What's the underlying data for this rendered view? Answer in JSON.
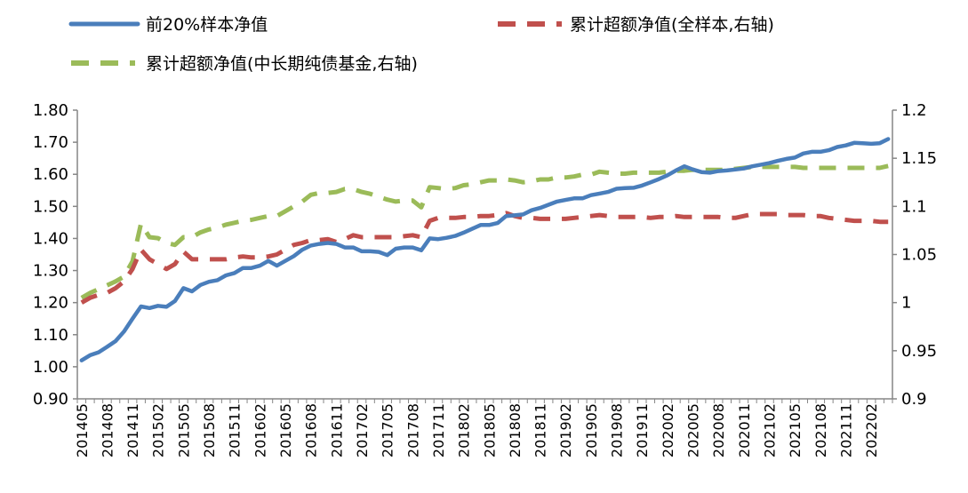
{
  "chart_data": {
    "type": "line",
    "grid": false,
    "legend_position": "top",
    "x_tick_labels": [
      "201405",
      "201408",
      "201411",
      "201502",
      "201505",
      "201508",
      "201511",
      "201602",
      "201605",
      "201608",
      "201611",
      "201702",
      "201705",
      "201708",
      "201711",
      "201802",
      "201805",
      "201808",
      "201811",
      "201902",
      "201905",
      "201908",
      "201911",
      "202002",
      "202005",
      "202008",
      "202011",
      "202102",
      "202105",
      "202108",
      "202111",
      "202202"
    ],
    "x": [
      "201405",
      "201406",
      "201407",
      "201408",
      "201409",
      "201410",
      "201411",
      "201412",
      "201501",
      "201502",
      "201503",
      "201504",
      "201505",
      "201506",
      "201507",
      "201508",
      "201509",
      "201510",
      "201511",
      "201512",
      "201601",
      "201602",
      "201603",
      "201604",
      "201605",
      "201606",
      "201607",
      "201608",
      "201609",
      "201610",
      "201611",
      "201612",
      "201701",
      "201702",
      "201703",
      "201704",
      "201705",
      "201706",
      "201707",
      "201708",
      "201709",
      "201710",
      "201711",
      "201712",
      "201801",
      "201802",
      "201803",
      "201804",
      "201805",
      "201806",
      "201807",
      "201808",
      "201809",
      "201810",
      "201811",
      "201812",
      "201901",
      "201902",
      "201903",
      "201904",
      "201905",
      "201906",
      "201907",
      "201908",
      "201909",
      "201910",
      "201911",
      "201912",
      "202001",
      "202002",
      "202003",
      "202004",
      "202005",
      "202006",
      "202007",
      "202008",
      "202009",
      "202010",
      "202011",
      "202012",
      "202101",
      "202102",
      "202103",
      "202104",
      "202105",
      "202106",
      "202107",
      "202108",
      "202109",
      "202110",
      "202111",
      "202112",
      "202201",
      "202202",
      "202203",
      "202204"
    ],
    "y_left": {
      "ylim": [
        0.9,
        1.8
      ],
      "ticks": [
        "0.90",
        "1.00",
        "1.10",
        "1.20",
        "1.30",
        "1.40",
        "1.50",
        "1.60",
        "1.70",
        "1.80"
      ]
    },
    "y_right": {
      "ylim": [
        0.9,
        1.2
      ],
      "ticks": [
        "0.9",
        "0.95",
        "1",
        "1.05",
        "1.1",
        "1.15",
        "1.2"
      ]
    },
    "series": [
      {
        "name": "前20%样本净值",
        "axis": "left",
        "color": "#4a7ebb",
        "style": "solid",
        "values": [
          1.02,
          1.036,
          1.045,
          1.062,
          1.08,
          1.11,
          1.15,
          1.188,
          1.183,
          1.19,
          1.187,
          1.205,
          1.245,
          1.235,
          1.255,
          1.265,
          1.27,
          1.285,
          1.292,
          1.308,
          1.308,
          1.315,
          1.33,
          1.315,
          1.33,
          1.345,
          1.365,
          1.378,
          1.383,
          1.386,
          1.383,
          1.372,
          1.372,
          1.36,
          1.36,
          1.358,
          1.348,
          1.368,
          1.372,
          1.372,
          1.363,
          1.4,
          1.398,
          1.402,
          1.408,
          1.418,
          1.43,
          1.442,
          1.442,
          1.448,
          1.47,
          1.472,
          1.475,
          1.488,
          1.495,
          1.505,
          1.515,
          1.52,
          1.525,
          1.525,
          1.535,
          1.54,
          1.545,
          1.555,
          1.557,
          1.558,
          1.565,
          1.575,
          1.585,
          1.597,
          1.612,
          1.625,
          1.615,
          1.607,
          1.605,
          1.61,
          1.612,
          1.615,
          1.618,
          1.625,
          1.63,
          1.635,
          1.642,
          1.648,
          1.652,
          1.665,
          1.67,
          1.67,
          1.675,
          1.685,
          1.69,
          1.698,
          1.697,
          1.695,
          1.697,
          1.71
        ]
      },
      {
        "name": "累计超额净值(全样本,右轴)",
        "axis": "right",
        "color": "#c0504d",
        "style": "dashed",
        "values": [
          1.0,
          1.005,
          1.008,
          1.01,
          1.015,
          1.022,
          1.035,
          1.055,
          1.045,
          1.04,
          1.035,
          1.04,
          1.053,
          1.045,
          1.045,
          1.045,
          1.045,
          1.045,
          1.047,
          1.048,
          1.047,
          1.047,
          1.048,
          1.05,
          1.055,
          1.06,
          1.062,
          1.065,
          1.065,
          1.066,
          1.063,
          1.066,
          1.07,
          1.068,
          1.068,
          1.068,
          1.068,
          1.068,
          1.069,
          1.07,
          1.068,
          1.085,
          1.088,
          1.088,
          1.088,
          1.089,
          1.089,
          1.09,
          1.09,
          1.091,
          1.093,
          1.09,
          1.088,
          1.088,
          1.087,
          1.087,
          1.087,
          1.087,
          1.088,
          1.089,
          1.09,
          1.091,
          1.09,
          1.089,
          1.089,
          1.089,
          1.089,
          1.088,
          1.089,
          1.089,
          1.09,
          1.089,
          1.089,
          1.089,
          1.089,
          1.089,
          1.088,
          1.088,
          1.09,
          1.092,
          1.092,
          1.092,
          1.092,
          1.091,
          1.091,
          1.091,
          1.09,
          1.09,
          1.088,
          1.087,
          1.086,
          1.085,
          1.085,
          1.085,
          1.084,
          1.084
        ]
      },
      {
        "name": "累计超额净值(中长期纯债基金,右轴)",
        "axis": "right",
        "color": "#9bbb59",
        "style": "dashed",
        "values": [
          1.005,
          1.01,
          1.014,
          1.018,
          1.022,
          1.027,
          1.043,
          1.082,
          1.068,
          1.067,
          1.062,
          1.06,
          1.068,
          1.068,
          1.073,
          1.076,
          1.078,
          1.081,
          1.083,
          1.085,
          1.086,
          1.088,
          1.09,
          1.09,
          1.095,
          1.1,
          1.105,
          1.112,
          1.114,
          1.114,
          1.115,
          1.118,
          1.118,
          1.115,
          1.113,
          1.11,
          1.107,
          1.105,
          1.106,
          1.106,
          1.099,
          1.12,
          1.119,
          1.118,
          1.119,
          1.122,
          1.123,
          1.125,
          1.127,
          1.127,
          1.128,
          1.127,
          1.125,
          1.126,
          1.128,
          1.128,
          1.13,
          1.13,
          1.131,
          1.133,
          1.133,
          1.136,
          1.135,
          1.134,
          1.134,
          1.135,
          1.135,
          1.135,
          1.135,
          1.136,
          1.137,
          1.137,
          1.138,
          1.138,
          1.138,
          1.138,
          1.138,
          1.139,
          1.14,
          1.141,
          1.141,
          1.141,
          1.141,
          1.141,
          1.141,
          1.14,
          1.14,
          1.14,
          1.14,
          1.14,
          1.14,
          1.14,
          1.14,
          1.14,
          1.14,
          1.142
        ]
      }
    ]
  }
}
